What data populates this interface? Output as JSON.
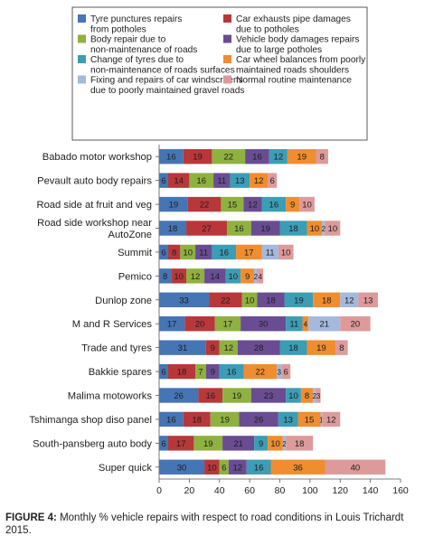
{
  "chart_data": {
    "type": "bar",
    "orientation": "horizontal",
    "stacked": true,
    "categories": [
      "Babado motor workshop",
      "Pevault auto body repairs",
      "Road side at fruit and veg",
      "Road side workshop near AutoZone",
      "Summit",
      "Pemico",
      "Dunlop zone",
      "M and R Services",
      "Trade and tyres",
      "Bakkie spares",
      "Malima motoworks",
      "Tshimanga shop diso panel",
      "South-pansberg auto body",
      "Super quick"
    ],
    "category_lines": [
      [
        "Babado motor workshop"
      ],
      [
        "Pevault auto body repairs"
      ],
      [
        "Road side at fruit and veg"
      ],
      [
        "Road side workshop near",
        "AutoZone"
      ],
      [
        "Summit"
      ],
      [
        "Pemico"
      ],
      [
        "Dunlop zone"
      ],
      [
        "M and R Services"
      ],
      [
        "Trade and tyres"
      ],
      [
        "Bakkie spares"
      ],
      [
        "Malima motoworks"
      ],
      [
        "Tshimanga shop diso panel"
      ],
      [
        "South-pansberg auto body"
      ],
      [
        "Super quick"
      ]
    ],
    "series": [
      {
        "name": "Tyre punctures repairs from potholes",
        "name_lines": [
          "Tyre punctures repairs",
          "from potholes"
        ],
        "color": "#4575b4",
        "values": [
          16,
          6,
          19,
          18,
          6,
          8,
          33,
          17,
          31,
          6,
          26,
          16,
          6,
          30
        ]
      },
      {
        "name": "Car exhausts pipe damages due to potholes",
        "name_lines": [
          "Car exhausts pipe damages",
          "due to potholes"
        ],
        "color": "#b8373a",
        "values": [
          19,
          14,
          22,
          27,
          8,
          10,
          22,
          20,
          9,
          18,
          16,
          18,
          17,
          10
        ]
      },
      {
        "name": "Body repair due to non-maintenance of roads",
        "name_lines": [
          "Body repair due to",
          "non-maintenance of roads"
        ],
        "color": "#8fb13f",
        "values": [
          22,
          16,
          15,
          16,
          10,
          12,
          10,
          17,
          12,
          7,
          19,
          19,
          19,
          6
        ]
      },
      {
        "name": "Vehicle body damages repairs due to large potholes",
        "name_lines": [
          "Vehicle body damages repairs",
          "due to large potholes"
        ],
        "color": "#6a4c93",
        "values": [
          16,
          11,
          12,
          19,
          11,
          14,
          18,
          30,
          28,
          9,
          23,
          26,
          21,
          12
        ]
      },
      {
        "name": "Change of tyres due to non-maintenance of roads surfaces",
        "name_lines": [
          "Change of tyres due to",
          "non-maintenance of roads surfaces"
        ],
        "color": "#3c9db5",
        "values": [
          12,
          13,
          16,
          18,
          16,
          10,
          19,
          11,
          18,
          16,
          10,
          13,
          9,
          16
        ]
      },
      {
        "name": "Car wheel balances from poorly maintained roads shoulders",
        "name_lines": [
          "Car wheel balances from poorly",
          "maintained roads shoulders"
        ],
        "color": "#ef8d2f",
        "values": [
          19,
          12,
          9,
          10,
          17,
          9,
          18,
          4,
          19,
          22,
          8,
          15,
          10,
          36
        ]
      },
      {
        "name": "Fixing and repairs of car windscreens due to poorly maintained gravel roads",
        "name_lines": [
          "Fixing and repairs of car windscreens",
          "due to poorly maintained gravel roads"
        ],
        "color": "#a5b9dd",
        "values": [
          0,
          0,
          0,
          2,
          11,
          2,
          12,
          21,
          0,
          3,
          2,
          1,
          2,
          0
        ]
      },
      {
        "name": "Normal routine maintenance",
        "name_lines": [
          "Normal routine maintenance"
        ],
        "color": "#dd9a9a",
        "values": [
          8,
          6,
          10,
          10,
          10,
          4,
          13,
          20,
          8,
          6,
          3,
          12,
          18,
          40
        ]
      }
    ],
    "xlim": [
      0,
      160
    ],
    "xticks": [
      0,
      20,
      40,
      60,
      80,
      100,
      120,
      140,
      160
    ],
    "xlabel": "",
    "ylabel": "",
    "legend_position": "top",
    "grid": false
  },
  "caption": {
    "label": "FIGURE 4:",
    "text": " Monthly % vehicle repairs with respect to road conditions in Louis Trichardt 2015."
  }
}
